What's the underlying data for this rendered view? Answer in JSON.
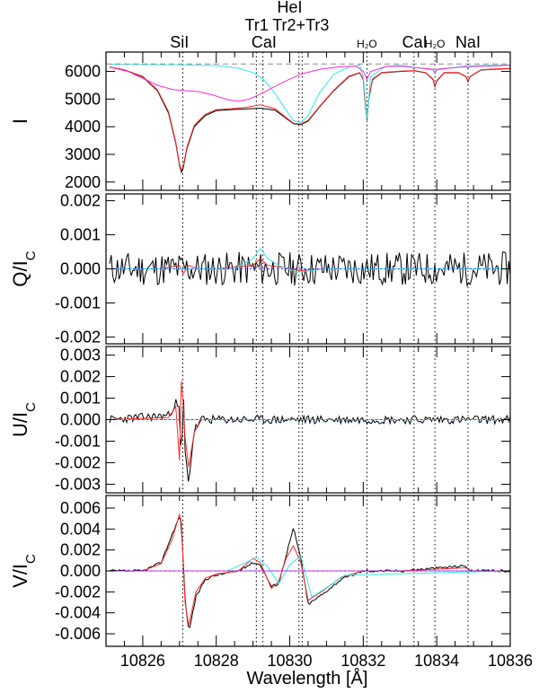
{
  "figure": {
    "xlabel": "Wavelength [Å]",
    "line_labels": [
      {
        "text": "SiI",
        "x": 10827.0
      },
      {
        "text": "HeI",
        "x": 10830.0
      },
      {
        "text": "Tr1",
        "x": 10829.1
      },
      {
        "text": "Tr2+Tr3",
        "x": 10830.3
      },
      {
        "text": "CaI",
        "x": 10829.3
      },
      {
        "text": "H₂O",
        "x": 10832.1,
        "small": true
      },
      {
        "text": "CaI",
        "x": 10833.4
      },
      {
        "text": "H₂O",
        "x": 10833.95,
        "small": true
      },
      {
        "text": "NaI",
        "x": 10834.85
      }
    ],
    "reference_lines": [
      10827.09,
      10829.09,
      10829.27,
      10830.25,
      10830.34,
      10832.1,
      10833.38,
      10833.95,
      10834.85
    ],
    "colors": {
      "observed": "#000000",
      "fit": "#ff0000",
      "cyan": "#00e5ee",
      "magenta": "#ff00ff",
      "blue_dotted": "#3030ff",
      "gray_dash": "#808080"
    }
  },
  "chart_data": [
    {
      "type": "line",
      "id": "I",
      "ylabel": "I",
      "xlim": [
        10825,
        10836
      ],
      "ylim": [
        1700,
        6700
      ],
      "yticks": [
        "2000",
        "3000",
        "4000",
        "5000",
        "6000"
      ],
      "xticks": [
        "10826",
        "10828",
        "10830",
        "10832",
        "10834",
        "10836"
      ],
      "continuum": 6270,
      "series": [
        {
          "color": "black",
          "x": [
            10825.1,
            10825.5,
            10826.0,
            10826.4,
            10826.7,
            10826.9,
            10827.0,
            10827.05,
            10827.1,
            10827.2,
            10827.4,
            10827.7,
            10828.0,
            10828.4,
            10828.8,
            10829.2,
            10829.6,
            10829.9,
            10830.1,
            10830.3,
            10830.5,
            10830.8,
            10831.2,
            10831.6,
            10831.9,
            10832.0,
            10832.05,
            10832.1,
            10832.15,
            10832.25,
            10832.5,
            10833.0,
            10833.4,
            10833.7,
            10833.9,
            10833.95,
            10834.0,
            10834.2,
            10834.6,
            10834.8,
            10834.85,
            10834.9,
            10835.2,
            10835.6,
            10836.0
          ],
          "y": [
            6150,
            6050,
            5800,
            5300,
            4500,
            3400,
            2600,
            2350,
            2500,
            3200,
            4000,
            4400,
            4580,
            4620,
            4640,
            4670,
            4600,
            4300,
            4110,
            4080,
            4200,
            4700,
            5300,
            5800,
            5950,
            5700,
            4900,
            4250,
            5000,
            5700,
            5950,
            6000,
            6020,
            5950,
            5700,
            5450,
            5650,
            5950,
            5950,
            5800,
            5620,
            5800,
            6050,
            6080,
            6100
          ]
        },
        {
          "color": "red",
          "x": [
            10825.1,
            10825.5,
            10826.0,
            10826.4,
            10826.7,
            10826.9,
            10827.0,
            10827.05,
            10827.1,
            10827.2,
            10827.4,
            10827.7,
            10828.0,
            10828.4,
            10828.8,
            10829.2,
            10829.6,
            10829.9,
            10830.1,
            10830.3,
            10830.5,
            10830.8,
            10831.2,
            10831.6,
            10831.9,
            10832.0,
            10832.05,
            10832.1,
            10832.15,
            10832.25,
            10832.5,
            10833.0,
            10833.4,
            10833.7,
            10833.9,
            10833.95,
            10834.0,
            10834.2,
            10834.6,
            10834.8,
            10834.85,
            10834.9,
            10835.2,
            10835.6,
            10836.0
          ],
          "y": [
            6160,
            6060,
            5820,
            5330,
            4550,
            3450,
            2650,
            2420,
            2560,
            3250,
            4050,
            4450,
            4620,
            4650,
            4700,
            4790,
            4650,
            4330,
            4130,
            4100,
            4230,
            4720,
            5320,
            5820,
            5960,
            5720,
            4920,
            4300,
            5020,
            5720,
            5960,
            6010,
            6030,
            5960,
            5720,
            5480,
            5670,
            5960,
            5960,
            5810,
            5650,
            5810,
            6060,
            6090,
            6110
          ]
        },
        {
          "color": "cyan",
          "x": [
            10825.1,
            10826.0,
            10827.0,
            10828.0,
            10828.6,
            10829.0,
            10829.3,
            10829.6,
            10829.9,
            10830.1,
            10830.3,
            10830.5,
            10830.8,
            10831.2,
            10831.6,
            10831.9,
            10832.0,
            10832.1,
            10832.2,
            10832.6,
            10833.0,
            10833.9,
            10833.95,
            10834.0,
            10834.8,
            10834.85,
            10834.9,
            10836.0
          ],
          "y": [
            6260,
            6250,
            6240,
            6210,
            6120,
            5960,
            5700,
            5200,
            4600,
            4220,
            4150,
            4400,
            5200,
            5900,
            6150,
            6230,
            5800,
            4300,
            5800,
            6180,
            6220,
            6050,
            5900,
            6050,
            6200,
            6150,
            6200,
            6240
          ]
        },
        {
          "color": "magenta",
          "x": [
            10825.1,
            10825.6,
            10826.0,
            10826.4,
            10826.8,
            10827.2,
            10827.5,
            10827.9,
            10828.3,
            10828.6,
            10828.9,
            10829.3,
            10829.8,
            10830.3,
            10830.8,
            10831.3,
            10831.8,
            10832.0,
            10832.1,
            10832.2,
            10832.6,
            10833.0,
            10833.9,
            10833.95,
            10834.0,
            10834.8,
            10834.85,
            10834.9,
            10836.0
          ],
          "y": [
            6150,
            6000,
            5750,
            5500,
            5350,
            5300,
            5270,
            5150,
            4980,
            4920,
            5000,
            5250,
            5600,
            5900,
            6070,
            6160,
            6190,
            6000,
            5700,
            6000,
            6170,
            6190,
            6080,
            5950,
            6080,
            6170,
            6120,
            6170,
            6220
          ]
        },
        {
          "color": "gray",
          "dash": true,
          "x": [
            10825,
            10836
          ],
          "y": [
            6270,
            6270
          ]
        }
      ]
    },
    {
      "type": "line",
      "id": "Q",
      "ylabel": "Q/I",
      "ylabel_sub": "C",
      "xlim": [
        10825,
        10836
      ],
      "ylim": [
        -0.0022,
        0.0022
      ],
      "yticks": [
        "-0.002",
        "-0.001",
        "0.000",
        "0.001",
        "0.002"
      ],
      "series": [
        {
          "color": "black",
          "noise": {
            "seed": 11,
            "amp": 0.0005,
            "n": 260
          },
          "x": [
            10825.1,
            10836.0
          ],
          "y": [
            0.0,
            0.0
          ]
        },
        {
          "color": "red",
          "x": [
            10825.1,
            10826.5,
            10827.0,
            10827.1,
            10827.25,
            10827.5,
            10828.0,
            10829.0,
            10829.2,
            10829.4,
            10829.8,
            10830.3,
            10831.0,
            10836.0
          ],
          "y": [
            0.0,
            0.0,
            0.0001,
            -0.00015,
            0.0001,
            0.0,
            0.0,
            0.0001,
            0.0003,
            0.0001,
            5e-05,
            -5e-05,
            0.0,
            0.0
          ]
        },
        {
          "color": "cyan",
          "x": [
            10825.1,
            10828.5,
            10829.0,
            10829.2,
            10829.4,
            10829.7,
            10830.2,
            10831.0,
            10836.0
          ],
          "y": [
            0.0,
            0.0,
            0.0003,
            0.0006,
            0.0003,
            0.0001,
            -0.0001,
            0.0,
            0.0
          ]
        },
        {
          "color": "blue",
          "dotted": true,
          "x": [
            10825,
            10836
          ],
          "y": [
            0.0,
            0.0
          ]
        }
      ]
    },
    {
      "type": "line",
      "id": "U",
      "ylabel": "U/I",
      "ylabel_sub": "C",
      "xlim": [
        10825,
        10836
      ],
      "ylim": [
        -0.0034,
        0.0034
      ],
      "yticks": [
        "-0.003",
        "-0.002",
        "-0.001",
        "0.000",
        "0.001",
        "0.002",
        "0.003"
      ],
      "series": [
        {
          "color": "black",
          "noise": {
            "seed": 23,
            "amp": 0.0002,
            "n": 260
          },
          "x": [
            10825.1,
            10826.7,
            10826.9,
            10827.0,
            10827.05,
            10827.1,
            10827.15,
            10827.25,
            10827.4,
            10827.6,
            10836.0
          ],
          "y": [
            0.0,
            0.0002,
            0.0008,
            0.0004,
            -0.0025,
            0.0016,
            -0.0015,
            -0.0029,
            -0.0005,
            0.0,
            0.0
          ]
        },
        {
          "color": "red",
          "x": [
            10825.1,
            10826.7,
            10826.9,
            10827.0,
            10827.05,
            10827.1,
            10827.15,
            10827.25,
            10827.4,
            10827.6,
            10836.0
          ],
          "y": [
            0.0,
            0.0001,
            0.0006,
            -0.0019,
            0.0018,
            0.0008,
            -0.0008,
            -0.0022,
            -0.0006,
            0.0,
            0.0
          ]
        },
        {
          "color": "cyan",
          "x": [
            10825.1,
            10836.0
          ],
          "y": [
            0.0,
            0.0
          ]
        },
        {
          "color": "blue",
          "dotted": true,
          "x": [
            10825,
            10836
          ],
          "y": [
            0.0,
            0.0
          ]
        }
      ]
    },
    {
      "type": "line",
      "id": "V",
      "ylabel": "V/I",
      "ylabel_sub": "C",
      "xlim": [
        10825,
        10836
      ],
      "ylim": [
        -0.0072,
        0.0072
      ],
      "yticks": [
        "-0.006",
        "-0.004",
        "-0.002",
        "0.000",
        "0.002",
        "0.004",
        "0.006"
      ],
      "series": [
        {
          "color": "black",
          "noise": {
            "seed": 37,
            "amp": 0.00012,
            "n": 260
          },
          "x": [
            10825.1,
            10826.0,
            10826.5,
            10826.8,
            10827.0,
            10827.05,
            10827.15,
            10827.25,
            10827.45,
            10827.7,
            10828.0,
            10828.6,
            10829.0,
            10829.2,
            10829.5,
            10829.7,
            10829.9,
            10830.1,
            10830.3,
            10830.5,
            10830.9,
            10831.4,
            10832.0,
            10833.0,
            10834.8,
            10834.9,
            10836.0
          ],
          "y": [
            0.0,
            0.0,
            0.0008,
            0.0035,
            0.0052,
            0.0045,
            -0.0025,
            -0.0058,
            -0.0025,
            -0.0008,
            -0.0004,
            0.0,
            0.0008,
            0.0006,
            -0.0015,
            -0.0012,
            0.0015,
            0.0041,
            0.0012,
            -0.0032,
            -0.0022,
            -0.0008,
            0.0,
            0.0,
            0.0005,
            0.0,
            0.0
          ]
        },
        {
          "color": "red",
          "x": [
            10825.1,
            10826.0,
            10826.5,
            10826.8,
            10827.0,
            10827.05,
            10827.15,
            10827.25,
            10827.45,
            10827.7,
            10828.0,
            10828.6,
            10829.0,
            10829.2,
            10829.5,
            10829.7,
            10829.9,
            10830.1,
            10830.3,
            10830.5,
            10830.9,
            10831.4,
            10832.0,
            10833.0,
            10834.8,
            10834.9,
            10836.0
          ],
          "y": [
            0.0,
            0.0,
            0.0007,
            0.003,
            0.0054,
            0.0046,
            -0.003,
            -0.0052,
            -0.002,
            -0.0007,
            -0.0003,
            0.0,
            0.0012,
            0.0008,
            -0.0017,
            -0.001,
            0.0012,
            0.0024,
            0.0008,
            -0.0028,
            -0.0019,
            -0.0006,
            0.0,
            0.0,
            0.0003,
            0.0,
            0.0
          ]
        },
        {
          "color": "cyan",
          "x": [
            10825.1,
            10828.3,
            10828.8,
            10829.1,
            10829.4,
            10829.7,
            10830.0,
            10830.3,
            10830.6,
            10831.0,
            10831.5,
            10836.0
          ],
          "y": [
            0.0,
            0.0,
            0.0008,
            0.0013,
            0.0004,
            -0.0012,
            0.0006,
            0.0014,
            -0.0025,
            -0.0016,
            -0.0004,
            0.0
          ]
        },
        {
          "color": "magenta",
          "x": [
            10825.1,
            10836.0
          ],
          "y": [
            0.0,
            0.0
          ]
        },
        {
          "color": "blue",
          "dotted": true,
          "x": [
            10825,
            10836
          ],
          "y": [
            0.0,
            0.0
          ]
        }
      ]
    }
  ]
}
